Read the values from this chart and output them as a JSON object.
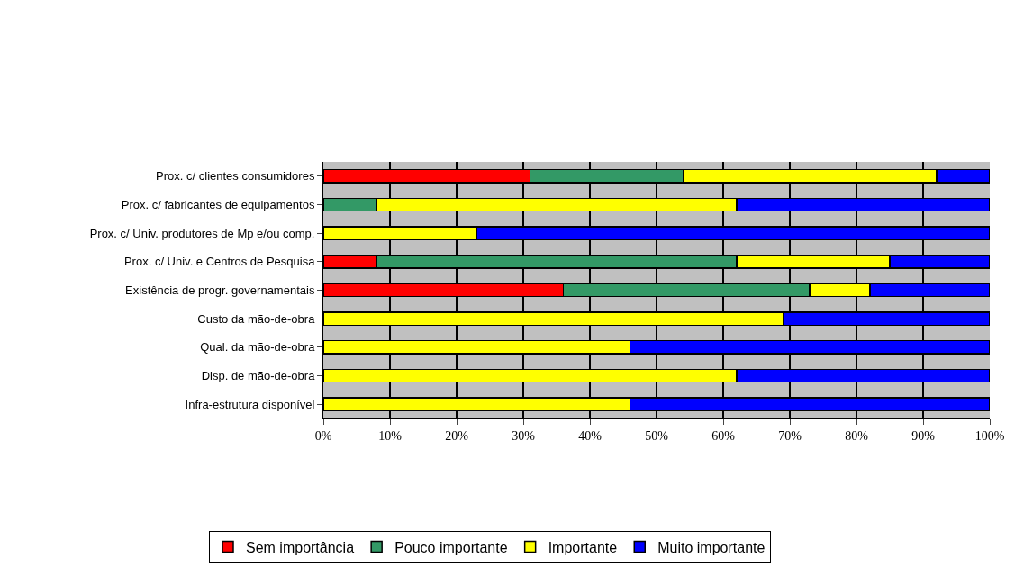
{
  "chart_data": {
    "type": "bar",
    "orientation": "horizontal",
    "stacked": true,
    "categories": [
      "Prox. c/ clientes consumidores",
      "Prox. c/ fabricantes de equipamentos",
      "Prox. c/ Univ. produtores de Mp e/ou comp.",
      "Prox. c/ Univ. e Centros de Pesquisa",
      "Existência de progr. governamentais",
      "Custo da mão-de-obra",
      "Qual. da mão-de-obra",
      "Disp. de mão-de-obra",
      "Infra-estrutura disponível"
    ],
    "series": [
      {
        "name": "Sem importância",
        "color": "#ff0000",
        "values": [
          31,
          0,
          0,
          8,
          36,
          0,
          0,
          0,
          0
        ]
      },
      {
        "name": "Pouco importante",
        "color": "#339966",
        "values": [
          23,
          8,
          0,
          54,
          37,
          0,
          0,
          0,
          0
        ]
      },
      {
        "name": "Importante",
        "color": "#ffff00",
        "values": [
          38,
          54,
          23,
          23,
          9,
          69,
          46,
          62,
          46
        ]
      },
      {
        "name": "Muito importante",
        "color": "#0000ff",
        "values": [
          8,
          38,
          77,
          15,
          18,
          31,
          54,
          38,
          54
        ]
      }
    ],
    "xlim": [
      0,
      100
    ],
    "xticks": [
      {
        "value": 0,
        "label": "0%"
      },
      {
        "value": 10,
        "label": "10%"
      },
      {
        "value": 20,
        "label": "20%"
      },
      {
        "value": 30,
        "label": "30%"
      },
      {
        "value": 40,
        "label": "40%"
      },
      {
        "value": 50,
        "label": "50%"
      },
      {
        "value": 60,
        "label": "60%"
      },
      {
        "value": 70,
        "label": "70%"
      },
      {
        "value": 80,
        "label": "80%"
      },
      {
        "value": 90,
        "label": "90%"
      },
      {
        "value": 100,
        "label": "100%"
      }
    ],
    "grid": "x",
    "legend": "bottom"
  }
}
